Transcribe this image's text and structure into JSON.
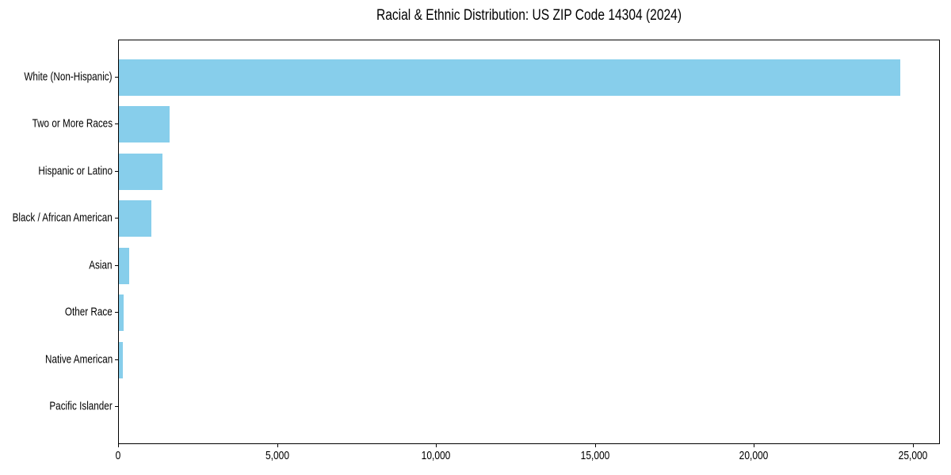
{
  "colors": {
    "bar": "#87CEEB",
    "axis": "#000000",
    "background": "#FFFFFF",
    "text": "#000000"
  },
  "chart_data": {
    "type": "bar",
    "orientation": "horizontal",
    "title": "Racial & Ethnic Distribution: US ZIP Code 14304 (2024)",
    "categories": [
      "White (Non-Hispanic)",
      "Two or More Races",
      "Hispanic or Latino",
      "Black / African American",
      "Asian",
      "Other Race",
      "Native American",
      "Pacific Islander"
    ],
    "values": [
      24570,
      1585,
      1370,
      1020,
      320,
      155,
      115,
      0
    ],
    "xlabel": "",
    "ylabel": "",
    "xlim": [
      0,
      25800
    ],
    "x_ticks": [
      0,
      5000,
      10000,
      15000,
      20000,
      25000
    ],
    "x_tick_labels": [
      "0",
      "5,000",
      "10,000",
      "15,000",
      "20,000",
      "25,000"
    ],
    "grid": false,
    "legend": false,
    "bar_color": "#87CEEB",
    "sorted": "descending"
  }
}
